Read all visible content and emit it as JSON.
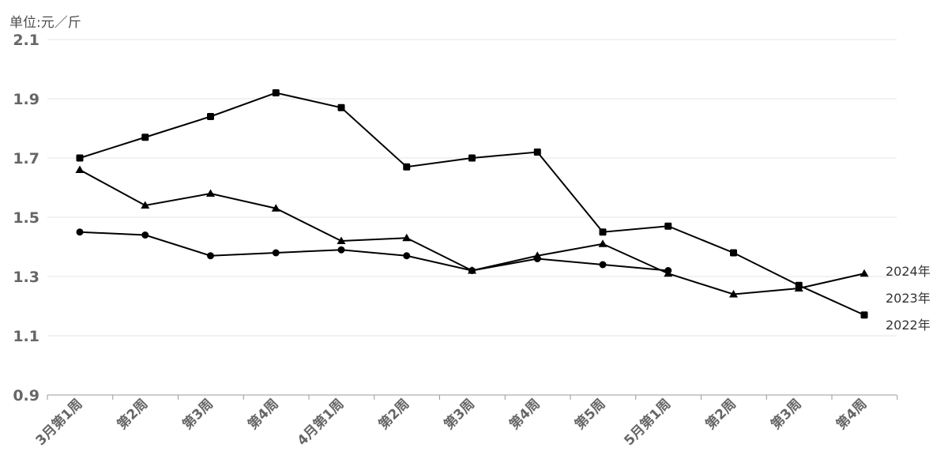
{
  "chart_data": {
    "type": "line",
    "unit_label": "单位:元／斤",
    "categories": [
      "3月第1周",
      "第2周",
      "第3周",
      "第4周",
      "4月第1周",
      "第2周",
      "第3周",
      "第4周",
      "第5周",
      "5月第1周",
      "第2周",
      "第3周",
      "第4周"
    ],
    "ylim": [
      0.9,
      2.1
    ],
    "yticks": [
      "0.9",
      "1.1",
      "1.3",
      "1.5",
      "1.7",
      "1.9",
      "2.1"
    ],
    "grid": true,
    "legend_placement": "right end labels",
    "series": [
      {
        "name": "2024年",
        "marker": "circle",
        "values": [
          1.45,
          1.44,
          1.37,
          1.38,
          1.39,
          1.37,
          1.32,
          1.36,
          1.34,
          1.32,
          null,
          null,
          null
        ]
      },
      {
        "name": "2023年",
        "marker": "triangle",
        "values": [
          1.66,
          1.54,
          1.58,
          1.53,
          1.42,
          1.43,
          1.32,
          1.37,
          1.41,
          1.31,
          1.24,
          1.26,
          1.31
        ]
      },
      {
        "name": "2022年",
        "marker": "square",
        "values": [
          1.7,
          1.77,
          1.84,
          1.92,
          1.87,
          1.67,
          1.7,
          1.72,
          1.45,
          1.47,
          1.38,
          1.27,
          1.17
        ]
      }
    ],
    "colors": {
      "line": "#000000",
      "grid": "#e6e6e6",
      "axis_text": "#666666",
      "label_text": "#333333"
    }
  }
}
